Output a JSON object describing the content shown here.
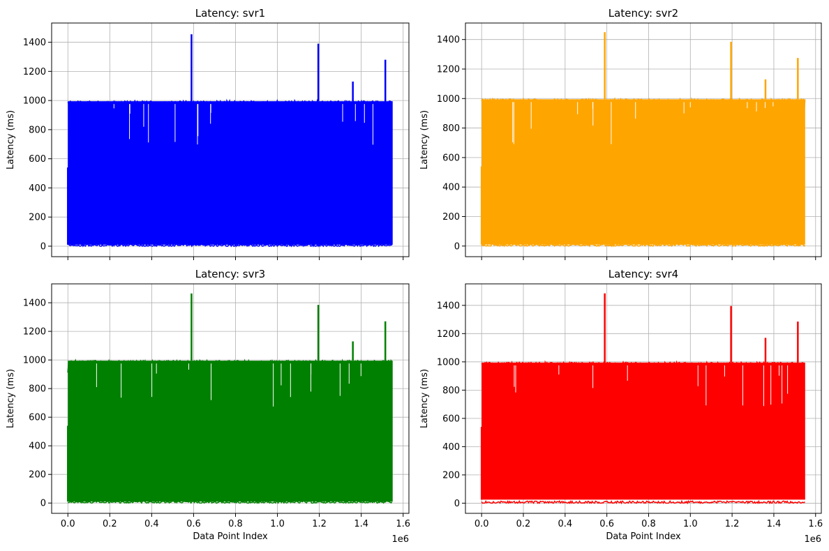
{
  "figure": {
    "layout": "2x2",
    "sharex": true,
    "grid": true
  },
  "chart_data": [
    {
      "type": "line",
      "title": "Latency: svr1",
      "xlabel": "",
      "ylabel": "Latency (ms)",
      "color": "#0000ff",
      "xlim": [
        -77500,
        1627500
      ],
      "ylim": [
        -72,
        1532
      ],
      "xticks": [
        "",
        "",
        "",
        "",
        "",
        "",
        "",
        "",
        ""
      ],
      "yticks": [
        "0",
        "200",
        "400",
        "600",
        "800",
        "1000",
        "1200",
        "1400"
      ],
      "x_offset_label": "",
      "x_range": [
        0,
        1550000
      ],
      "band": {
        "low": 10,
        "high": 995,
        "noise_floor": 0
      },
      "spikes": [
        {
          "x": 590000,
          "y": 1455
        },
        {
          "x": 1195000,
          "y": 1390
        },
        {
          "x": 1360000,
          "y": 1130
        },
        {
          "x": 1515000,
          "y": 1280
        }
      ],
      "start_segment": {
        "x_end": 5000,
        "y": 540
      }
    },
    {
      "type": "line",
      "title": "Latency: svr2",
      "xlabel": "",
      "ylabel": "Latency (ms)",
      "color": "#ffa500",
      "xlim": [
        -77500,
        1627500
      ],
      "ylim": [
        -72,
        1512
      ],
      "xticks": [
        "",
        "",
        "",
        "",
        "",
        "",
        "",
        "",
        ""
      ],
      "yticks": [
        "0",
        "200",
        "400",
        "600",
        "800",
        "1000",
        "1200",
        "1400"
      ],
      "x_offset_label": "",
      "x_range": [
        0,
        1550000
      ],
      "band": {
        "low": 10,
        "high": 995,
        "noise_floor": 0
      },
      "spikes": [
        {
          "x": 590000,
          "y": 1450
        },
        {
          "x": 1195000,
          "y": 1385
        },
        {
          "x": 1360000,
          "y": 1130
        },
        {
          "x": 1515000,
          "y": 1275
        }
      ],
      "start_segment": {
        "x_end": 5000,
        "y": 540
      }
    },
    {
      "type": "line",
      "title": "Latency: svr3",
      "xlabel": "Data Point Index",
      "ylabel": "Latency (ms)",
      "color": "#008000",
      "xlim": [
        -77500,
        1627500
      ],
      "ylim": [
        -72,
        1532
      ],
      "xticks": [
        "0.0",
        "0.2",
        "0.4",
        "0.6",
        "0.8",
        "1.0",
        "1.2",
        "1.4",
        "1.6"
      ],
      "yticks": [
        "0",
        "200",
        "400",
        "600",
        "800",
        "1000",
        "1200",
        "1400"
      ],
      "x_offset_label": "1e6",
      "x_range": [
        0,
        1550000
      ],
      "band": {
        "low": 10,
        "high": 995,
        "noise_floor": 0
      },
      "spikes": [
        {
          "x": 590000,
          "y": 1465
        },
        {
          "x": 1195000,
          "y": 1385
        },
        {
          "x": 1360000,
          "y": 1130
        },
        {
          "x": 1515000,
          "y": 1270
        }
      ],
      "start_segment": {
        "x_end": 5000,
        "y": 540
      }
    },
    {
      "type": "line",
      "title": "Latency: svr4",
      "xlabel": "Data Point Index",
      "ylabel": "Latency (ms)",
      "color": "#ff0000",
      "xlim": [
        -77500,
        1627500
      ],
      "ylim": [
        -72,
        1552
      ],
      "xticks": [
        "0.0",
        "0.2",
        "0.4",
        "0.6",
        "0.8",
        "1.0",
        "1.2",
        "1.4",
        "1.6"
      ],
      "yticks": [
        "0",
        "200",
        "400",
        "600",
        "800",
        "1000",
        "1200",
        "1400"
      ],
      "x_offset_label": "1e6",
      "x_range": [
        0,
        1550000
      ],
      "band": {
        "low": 25,
        "high": 995,
        "noise_floor": 0
      },
      "spikes": [
        {
          "x": 590000,
          "y": 1485
        },
        {
          "x": 1195000,
          "y": 1395
        },
        {
          "x": 1360000,
          "y": 1170
        },
        {
          "x": 1515000,
          "y": 1285
        }
      ],
      "start_segment": {
        "x_end": 5000,
        "y": 540
      }
    }
  ]
}
